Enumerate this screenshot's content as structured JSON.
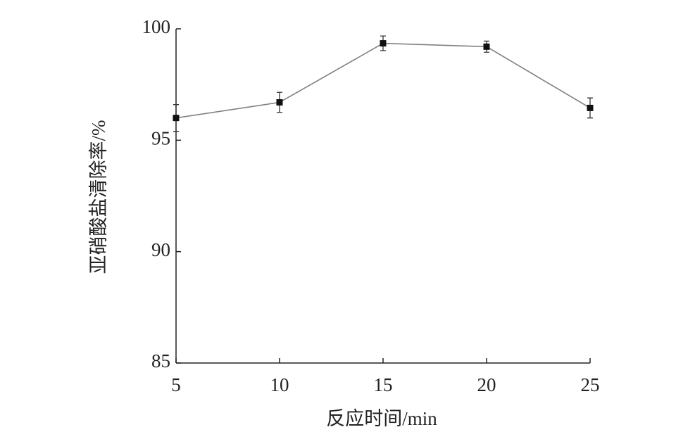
{
  "chart_data": {
    "type": "line",
    "xlabel": "反应时间/min",
    "ylabel": "亚硝酸盐清除率/%",
    "x": [
      5,
      10,
      15,
      20,
      25
    ],
    "series": [
      {
        "values": [
          96.0,
          96.7,
          99.35,
          99.2,
          96.45
        ],
        "errors": [
          0.6,
          0.45,
          0.33,
          0.25,
          0.45
        ],
        "color": "#808080"
      }
    ],
    "xlim": [
      5,
      25
    ],
    "xticks": [
      5,
      10,
      15,
      20,
      25
    ],
    "ylim": [
      85,
      100
    ],
    "yticks": [
      85,
      90,
      95,
      100
    ],
    "grid": false
  }
}
